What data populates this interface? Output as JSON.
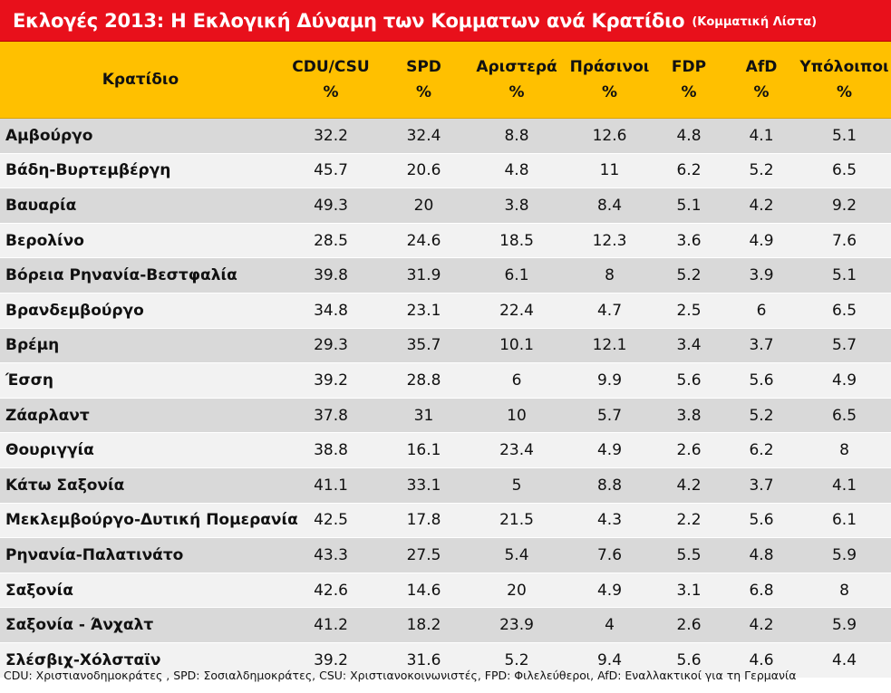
{
  "title": {
    "main": "Εκλογές 2013: Η Εκλογική Δύναμη των Κομματων ανά Κρατίδιο",
    "sub": "(Κομματική Λίστα)"
  },
  "colors": {
    "title_background": "#e8101b",
    "header_background": "#ffc000",
    "row_odd": "#d9d9d9",
    "row_even": "#f2f2f2"
  },
  "table": {
    "state_header": "Κρατίδιο",
    "columns": [
      {
        "name": "CDU/CSU",
        "unit": "%"
      },
      {
        "name": "SPD",
        "unit": "%"
      },
      {
        "name": "Αριστερά",
        "unit": "%"
      },
      {
        "name": "Πράσινοι",
        "unit": "%"
      },
      {
        "name": "FDP",
        "unit": "%"
      },
      {
        "name": "AfD",
        "unit": "%"
      },
      {
        "name": "Υπόλοιποι",
        "unit": "%"
      }
    ],
    "rows": [
      {
        "state": "Αμβούργο",
        "values": [
          "32.2",
          "32.4",
          "8.8",
          "12.6",
          "4.8",
          "4.1",
          "5.1"
        ]
      },
      {
        "state": "Βάδη-Βυρτεμβέργη",
        "values": [
          "45.7",
          "20.6",
          "4.8",
          "11",
          "6.2",
          "5.2",
          "6.5"
        ]
      },
      {
        "state": "Βαυαρία",
        "values": [
          "49.3",
          "20",
          "3.8",
          "8.4",
          "5.1",
          "4.2",
          "9.2"
        ]
      },
      {
        "state": "Βερολίνο",
        "values": [
          "28.5",
          "24.6",
          "18.5",
          "12.3",
          "3.6",
          "4.9",
          "7.6"
        ]
      },
      {
        "state": "Βόρεια Ρηνανία-Βεστφαλία",
        "values": [
          "39.8",
          "31.9",
          "6.1",
          "8",
          "5.2",
          "3.9",
          "5.1"
        ]
      },
      {
        "state": "Βρανδεμβούργο",
        "values": [
          "34.8",
          "23.1",
          "22.4",
          "4.7",
          "2.5",
          "6",
          "6.5"
        ]
      },
      {
        "state": "Βρέμη",
        "values": [
          "29.3",
          "35.7",
          "10.1",
          "12.1",
          "3.4",
          "3.7",
          "5.7"
        ]
      },
      {
        "state": "Έσση",
        "values": [
          "39.2",
          "28.8",
          "6",
          "9.9",
          "5.6",
          "5.6",
          "4.9"
        ]
      },
      {
        "state": "Ζάαρλαντ",
        "values": [
          "37.8",
          "31",
          "10",
          "5.7",
          "3.8",
          "5.2",
          "6.5"
        ]
      },
      {
        "state": "Θουριγγία",
        "values": [
          "38.8",
          "16.1",
          "23.4",
          "4.9",
          "2.6",
          "6.2",
          "8"
        ]
      },
      {
        "state": "Κάτω Σαξονία",
        "values": [
          "41.1",
          "33.1",
          "5",
          "8.8",
          "4.2",
          "3.7",
          "4.1"
        ]
      },
      {
        "state": "Μεκλεμβούργο-Δυτική Πομερανία",
        "values": [
          "42.5",
          "17.8",
          "21.5",
          "4.3",
          "2.2",
          "5.6",
          "6.1"
        ]
      },
      {
        "state": "Ρηνανία-Παλατινάτο",
        "values": [
          "43.3",
          "27.5",
          "5.4",
          "7.6",
          "5.5",
          "4.8",
          "5.9"
        ]
      },
      {
        "state": "Σαξονία",
        "values": [
          "42.6",
          "14.6",
          "20",
          "4.9",
          "3.1",
          "6.8",
          "8"
        ]
      },
      {
        "state": "Σαξονία - Άνχαλτ",
        "values": [
          "41.2",
          "18.2",
          "23.9",
          "4",
          "2.6",
          "4.2",
          "5.9"
        ]
      },
      {
        "state": "Σλέσβιχ-Χόλσταϊν",
        "values": [
          "39.2",
          "31.6",
          "5.2",
          "9.4",
          "5.6",
          "4.6",
          "4.4"
        ]
      }
    ]
  },
  "footnote": "CDU: Χριστιανοδημοκράτες , SPD: Σοσιαλδημοκράτες, CSU: Χριστιανοκοινωνιστές, FPD: Φιλελεύθεροι, AfD: Εναλλακτικοί για τη Γερμανία"
}
